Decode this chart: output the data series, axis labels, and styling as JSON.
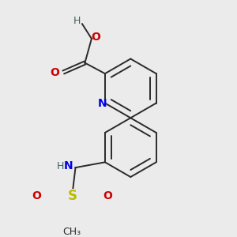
{
  "background_color": "#ebebeb",
  "bond_color": "#2a2a2a",
  "figsize": [
    3.0,
    3.0
  ],
  "dpi": 100,
  "lw": 1.4,
  "atom_colors": {
    "C": "#2a2a2a",
    "N": "#0000ee",
    "O": "#cc0000",
    "S": "#bbbb00",
    "H": "#406060"
  }
}
